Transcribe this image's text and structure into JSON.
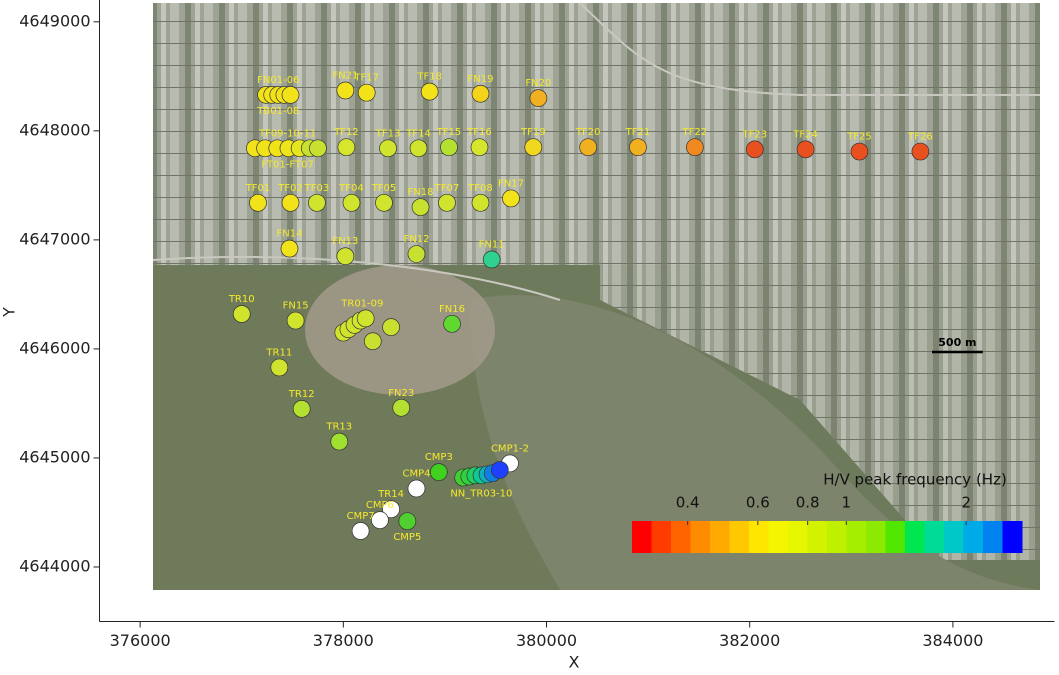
{
  "chart_data": {
    "type": "scatter",
    "xlabel": "X",
    "ylabel": "Y",
    "xlim": [
      375600,
      385000
    ],
    "xticks": [
      376000,
      378000,
      380000,
      382000,
      384000
    ],
    "ylim": [
      4643500,
      4649200
    ],
    "yticks": [
      4644000,
      4645000,
      4646000,
      4647000,
      4648000,
      4649000
    ],
    "sites": [
      {
        "label": "FN01-06",
        "label_below": "TB01-08",
        "points": [
          {
            "x": 377240,
            "y": 4648330,
            "color": "#f2e21a"
          },
          {
            "x": 377300,
            "y": 4648330,
            "color": "#f2e21a"
          },
          {
            "x": 377360,
            "y": 4648330,
            "color": "#f2e21a"
          },
          {
            "x": 377420,
            "y": 4648330,
            "color": "#f2e21a"
          },
          {
            "x": 377480,
            "y": 4648330,
            "color": "#f2e21a"
          }
        ]
      },
      {
        "label": "FN21",
        "points": [
          {
            "x": 378020,
            "y": 4648370,
            "color": "#f2e21a"
          }
        ]
      },
      {
        "label": "TF17",
        "points": [
          {
            "x": 378230,
            "y": 4648350,
            "color": "#f2e21a"
          }
        ]
      },
      {
        "label": "TF18",
        "points": [
          {
            "x": 378850,
            "y": 4648360,
            "color": "#f2e21a"
          }
        ]
      },
      {
        "label": "FN19",
        "points": [
          {
            "x": 379350,
            "y": 4648340,
            "color": "#f3d41a"
          }
        ]
      },
      {
        "label": "FN20",
        "points": [
          {
            "x": 379920,
            "y": 4648300,
            "color": "#f0b020"
          }
        ]
      },
      {
        "label": "TF09-10-11",
        "label_below": "FT01-FT07",
        "points": [
          {
            "x": 377130,
            "y": 4647840,
            "color": "#f2e21a"
          },
          {
            "x": 377230,
            "y": 4647840,
            "color": "#f2e21a"
          },
          {
            "x": 377350,
            "y": 4647840,
            "color": "#f2e21a"
          },
          {
            "x": 377460,
            "y": 4647840,
            "color": "#eee41a"
          },
          {
            "x": 377570,
            "y": 4647840,
            "color": "#e6e61e"
          },
          {
            "x": 377670,
            "y": 4647840,
            "color": "#c8e030"
          },
          {
            "x": 377750,
            "y": 4647840,
            "color": "#c8e030"
          }
        ]
      },
      {
        "label": "TF12",
        "points": [
          {
            "x": 378030,
            "y": 4647850,
            "color": "#d6e62c"
          }
        ]
      },
      {
        "label": "TF13",
        "points": [
          {
            "x": 378440,
            "y": 4647840,
            "color": "#d0e42e"
          }
        ]
      },
      {
        "label": "TF14",
        "points": [
          {
            "x": 378740,
            "y": 4647840,
            "color": "#d0e42e"
          }
        ]
      },
      {
        "label": "TF15",
        "points": [
          {
            "x": 379040,
            "y": 4647850,
            "color": "#b4e032"
          }
        ]
      },
      {
        "label": "TF16",
        "points": [
          {
            "x": 379340,
            "y": 4647850,
            "color": "#d6e62c"
          }
        ]
      },
      {
        "label": "TF19",
        "points": [
          {
            "x": 379870,
            "y": 4647850,
            "color": "#f0d820"
          }
        ]
      },
      {
        "label": "TF20",
        "points": [
          {
            "x": 380410,
            "y": 4647850,
            "color": "#f0b020"
          }
        ]
      },
      {
        "label": "TF21",
        "points": [
          {
            "x": 380900,
            "y": 4647850,
            "color": "#f0b020"
          }
        ]
      },
      {
        "label": "TF22",
        "points": [
          {
            "x": 381460,
            "y": 4647850,
            "color": "#f08a20"
          }
        ]
      },
      {
        "label": "TF23",
        "points": [
          {
            "x": 382050,
            "y": 4647830,
            "color": "#e85020"
          }
        ]
      },
      {
        "label": "TF24",
        "points": [
          {
            "x": 382550,
            "y": 4647830,
            "color": "#e85020"
          }
        ]
      },
      {
        "label": "TF25",
        "points": [
          {
            "x": 383080,
            "y": 4647810,
            "color": "#e85020"
          }
        ]
      },
      {
        "label": "TF26",
        "points": [
          {
            "x": 383680,
            "y": 4647810,
            "color": "#e85020"
          }
        ]
      },
      {
        "label": "TF01",
        "points": [
          {
            "x": 377160,
            "y": 4647340,
            "color": "#f2e21a"
          }
        ]
      },
      {
        "label": "TF02",
        "points": [
          {
            "x": 377480,
            "y": 4647340,
            "color": "#f2e21a"
          }
        ]
      },
      {
        "label": "TF03",
        "points": [
          {
            "x": 377740,
            "y": 4647340,
            "color": "#d0e42e"
          }
        ]
      },
      {
        "label": "TF04",
        "points": [
          {
            "x": 378080,
            "y": 4647340,
            "color": "#d0e42e"
          }
        ]
      },
      {
        "label": "TF05",
        "points": [
          {
            "x": 378400,
            "y": 4647340,
            "color": "#d0e42e"
          }
        ]
      },
      {
        "label": "FN18",
        "points": [
          {
            "x": 378760,
            "y": 4647300,
            "color": "#c8e030"
          }
        ]
      },
      {
        "label": "TF07",
        "points": [
          {
            "x": 379020,
            "y": 4647340,
            "color": "#d0e42e"
          }
        ]
      },
      {
        "label": "TF08",
        "points": [
          {
            "x": 379350,
            "y": 4647340,
            "color": "#d0e42e"
          }
        ]
      },
      {
        "label": "FN17",
        "points": [
          {
            "x": 379650,
            "y": 4647380,
            "color": "#f2e21a"
          }
        ]
      },
      {
        "label": "FN14",
        "points": [
          {
            "x": 377470,
            "y": 4646920,
            "color": "#f2e21a"
          }
        ]
      },
      {
        "label": "FN13",
        "points": [
          {
            "x": 378020,
            "y": 4646850,
            "color": "#d0e42e"
          }
        ]
      },
      {
        "label": "FN12",
        "points": [
          {
            "x": 378720,
            "y": 4646870,
            "color": "#c8e030"
          }
        ]
      },
      {
        "label": "FN11",
        "points": [
          {
            "x": 379460,
            "y": 4646820,
            "color": "#30d090"
          }
        ]
      },
      {
        "label": "TR10",
        "points": [
          {
            "x": 377000,
            "y": 4646320,
            "color": "#d0e42e"
          }
        ]
      },
      {
        "label": "FN15",
        "points": [
          {
            "x": 377530,
            "y": 4646260,
            "color": "#d0e42e"
          }
        ]
      },
      {
        "label": "TR01-09",
        "points": [
          {
            "x": 378000,
            "y": 4646150,
            "color": "#d0e42e"
          },
          {
            "x": 378050,
            "y": 4646180,
            "color": "#d0e42e"
          },
          {
            "x": 378110,
            "y": 4646220,
            "color": "#d0e42e"
          },
          {
            "x": 378170,
            "y": 4646260,
            "color": "#d0e42e"
          },
          {
            "x": 378220,
            "y": 4646280,
            "color": "#d0e42e"
          },
          {
            "x": 378470,
            "y": 4646200,
            "color": "#c8e030"
          },
          {
            "x": 378290,
            "y": 4646070,
            "color": "#c8e030"
          }
        ]
      },
      {
        "label": "FN16",
        "points": [
          {
            "x": 379070,
            "y": 4646230,
            "color": "#60d830"
          }
        ]
      },
      {
        "label": "TR11",
        "points": [
          {
            "x": 377370,
            "y": 4645830,
            "color": "#d0e42e"
          }
        ]
      },
      {
        "label": "TR12",
        "points": [
          {
            "x": 377590,
            "y": 4645450,
            "color": "#b4e032"
          }
        ]
      },
      {
        "label": "FN23",
        "points": [
          {
            "x": 378570,
            "y": 4645460,
            "color": "#b4e032"
          }
        ]
      },
      {
        "label": "TR13",
        "points": [
          {
            "x": 377960,
            "y": 4645150,
            "color": "#a0e030"
          }
        ]
      },
      {
        "label": "CMP3",
        "points": [
          {
            "x": 378940,
            "y": 4644870,
            "color": "#40d020"
          }
        ]
      },
      {
        "label": "CMP1-2",
        "points": [
          {
            "x": 379640,
            "y": 4644950,
            "color": "#ffffff"
          }
        ]
      },
      {
        "label_below": "NN_TR03-10",
        "points": [
          {
            "x": 379180,
            "y": 4644820,
            "color": "#40d030"
          },
          {
            "x": 379240,
            "y": 4644830,
            "color": "#30d040"
          },
          {
            "x": 379300,
            "y": 4644840,
            "color": "#20d060"
          },
          {
            "x": 379360,
            "y": 4644840,
            "color": "#10c890"
          },
          {
            "x": 379420,
            "y": 4644850,
            "color": "#10b0c0"
          },
          {
            "x": 379470,
            "y": 4644860,
            "color": "#1080e0"
          },
          {
            "x": 379540,
            "y": 4644890,
            "color": "#2040ff"
          }
        ]
      },
      {
        "label": "CMP4",
        "points": [
          {
            "x": 378720,
            "y": 4644720,
            "color": "#ffffff"
          }
        ]
      },
      {
        "label": "TR14",
        "points": [
          {
            "x": 378470,
            "y": 4644530,
            "color": "#ffffff"
          }
        ]
      },
      {
        "label": "CMP6",
        "points": [
          {
            "x": 378360,
            "y": 4644430,
            "color": "#ffffff"
          }
        ]
      },
      {
        "label": "CMP7",
        "points": [
          {
            "x": 378170,
            "y": 4644330,
            "color": "#ffffff"
          }
        ]
      },
      {
        "label_below": "CMP5",
        "points": [
          {
            "x": 378630,
            "y": 4644420,
            "color": "#50d030"
          }
        ]
      }
    ],
    "colorbar": {
      "title": "H/V peak frequency (Hz)",
      "log": true,
      "clim": [
        0.29,
        2.76
      ],
      "ticks": [
        0.4,
        0.6,
        0.8,
        1,
        2
      ],
      "colors": [
        "#ff0000",
        "#ff3c00",
        "#ff6400",
        "#ff8c00",
        "#ffaa00",
        "#ffc800",
        "#ffe600",
        "#f5f500",
        "#e6f500",
        "#d2f200",
        "#bef000",
        "#a5ee00",
        "#8cea00",
        "#50e600",
        "#00e650",
        "#00dc96",
        "#00c8c8",
        "#00aae6",
        "#0082f0",
        "#0000ff"
      ]
    },
    "scale_bar": {
      "label": "500 m",
      "length": 500
    }
  }
}
